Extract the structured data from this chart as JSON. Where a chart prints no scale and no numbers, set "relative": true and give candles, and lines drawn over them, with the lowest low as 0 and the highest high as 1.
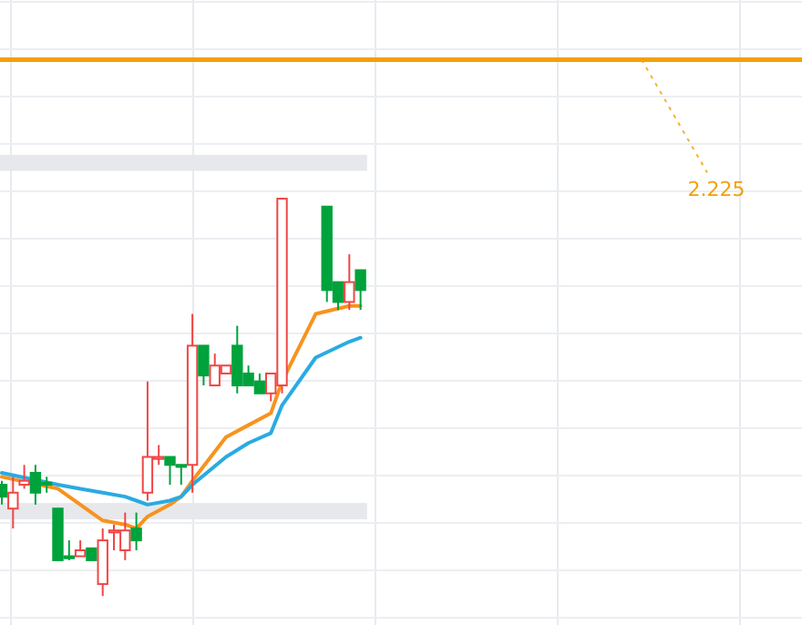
{
  "chart_data": {
    "type": "candlestick",
    "relative": true,
    "grid": true,
    "annotations": [
      "2.225"
    ],
    "categories": [
      null,
      null,
      null,
      null,
      null,
      null,
      null,
      null,
      null,
      null,
      null,
      null,
      null,
      null,
      null,
      null,
      null,
      null,
      null,
      null,
      null,
      null,
      null,
      null,
      null,
      null,
      null,
      null,
      null,
      null,
      null,
      null,
      null
    ],
    "ohlc": [
      [
        0.28,
        0.29,
        0.23,
        0.25
      ],
      [
        0.22,
        0.3,
        0.17,
        0.26
      ],
      [
        0.28,
        0.33,
        0.27,
        0.29
      ],
      [
        0.31,
        0.33,
        0.23,
        0.26
      ],
      [
        0.285,
        0.3,
        0.26,
        0.28
      ],
      [
        0.22,
        0.22,
        0.09,
        0.09
      ],
      [
        0.1,
        0.14,
        0.09,
        0.095
      ],
      [
        0.1,
        0.14,
        0.1,
        0.115
      ],
      [
        0.12,
        0.12,
        0.09,
        0.09
      ],
      [
        0.03,
        0.17,
        0,
        0.14
      ],
      [
        0.16,
        0.18,
        0.115,
        0.165
      ],
      [
        0.115,
        0.21,
        0.09,
        0.165
      ],
      [
        0.17,
        0.21,
        0.115,
        0.14
      ],
      [
        0.26,
        0.54,
        0.24,
        0.35
      ],
      [
        0.345,
        0.38,
        0.33,
        0.35
      ],
      [
        0.35,
        0.35,
        0.28,
        0.33
      ],
      [
        0.33,
        0.33,
        0.28,
        0.325
      ],
      [
        0.33,
        0.71,
        0.26,
        0.63
      ],
      [
        0.63,
        0.63,
        0.53,
        0.555
      ],
      [
        0.53,
        0.61,
        0.53,
        0.58
      ],
      [
        0.56,
        0.58,
        0.56,
        0.58
      ],
      [
        0.63,
        0.68,
        0.51,
        0.53
      ],
      [
        0.56,
        0.58,
        0.53,
        0.53
      ],
      [
        0.54,
        0.56,
        0.51,
        0.51
      ],
      [
        0.51,
        0.56,
        0.49,
        0.56
      ],
      [
        0.53,
        1,
        0.51,
        1
      ],
      null,
      null,
      null,
      [
        0.98,
        0.98,
        0.74,
        0.77
      ],
      [
        0.79,
        0.79,
        0.72,
        0.74
      ],
      [
        0.74,
        0.86,
        0.72,
        0.79
      ],
      [
        0.82,
        0.82,
        0.72,
        0.77
      ]
    ],
    "series": [
      {
        "type": "line",
        "color": "#f7931e",
        "values": [
          0.3,
          null,
          null,
          null,
          null,
          0.27,
          null,
          0.23,
          null,
          0.19,
          null,
          0.18,
          0.17,
          0.2,
          null,
          0.23,
          0.25,
          0.29,
          null,
          null,
          0.4,
          null,
          0.43,
          null,
          0.46,
          0.54,
          null,
          null,
          0.71,
          null,
          null,
          0.73,
          0.73
        ]
      },
      {
        "type": "line",
        "color": "#29abe2",
        "values": [
          0.31,
          null,
          null,
          null,
          null,
          0.28,
          null,
          0.27,
          null,
          0.26,
          null,
          0.25,
          0.24,
          0.23,
          null,
          0.24,
          0.25,
          0.28,
          null,
          null,
          0.35,
          null,
          0.385,
          null,
          0.41,
          0.48,
          null,
          null,
          0.6,
          null,
          null,
          0.64,
          0.65
        ]
      }
    ],
    "ref_lines": [
      {
        "axis": "y",
        "value": 1.35,
        "color": "#f5a000"
      }
    ],
    "bands": [
      {
        "axis": "y",
        "from": 1.07,
        "to": 1.11,
        "color": "#e6e8ec"
      },
      {
        "axis": "y",
        "from": 0.193,
        "to": 0.234,
        "color": "#e6e8ec"
      }
    ]
  }
}
